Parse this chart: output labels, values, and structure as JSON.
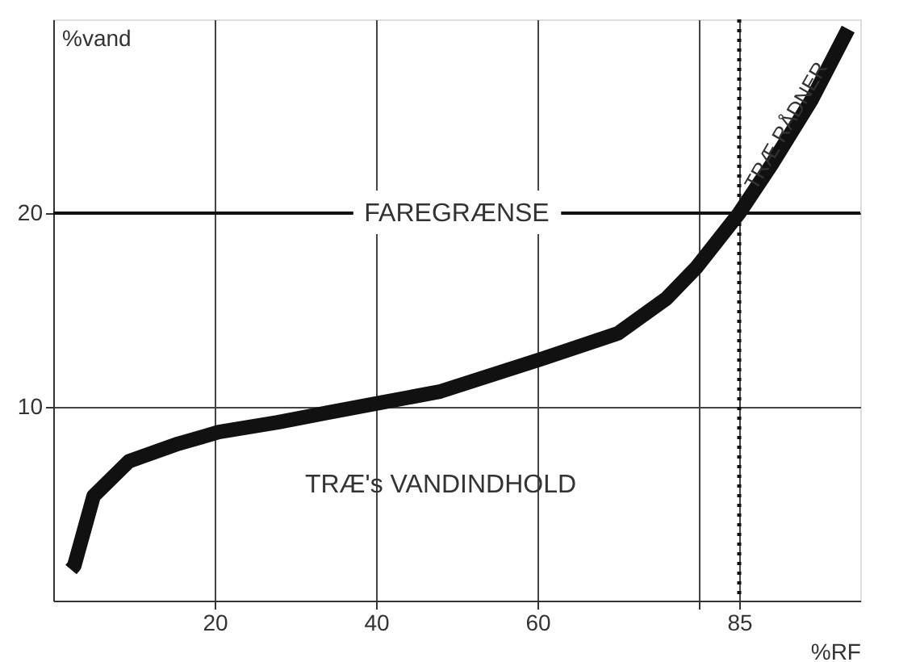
{
  "chart_data": {
    "type": "line",
    "xlabel": "%RF",
    "ylabel": "%vand",
    "series": [
      {
        "color": "#111111",
        "x": [
          2.2,
          2.6,
          5,
          9.4,
          15.5,
          20.5,
          27.8,
          34,
          40.4,
          48,
          60.7,
          70,
          76,
          79.7,
          85,
          89,
          93.9,
          98.5
        ],
        "values": [
          1.6,
          1.8,
          5.4,
          7.2,
          8.1,
          8.7,
          9.2,
          9.7,
          10.2,
          10.8,
          12.5,
          13.8,
          15.6,
          17.2,
          20,
          22.5,
          25.8,
          29.5
        ]
      }
    ],
    "xlim": [
      0,
      100
    ],
    "ylim": [
      0,
      30
    ],
    "xticks": [
      20,
      40,
      60,
      {
        "value": 80,
        "label": null
      },
      85
    ],
    "yticks": [
      10,
      20
    ],
    "grid": true,
    "ref_lines": [
      {
        "axis": "y",
        "value": 20,
        "label": "FAREGRÆNSE",
        "color": "#111111",
        "line_style": "solid"
      },
      {
        "axis": "x",
        "value": 85,
        "label": null,
        "color": "#111111",
        "line_style": "dotted"
      }
    ],
    "annotations": [
      "TRÆ's VANDINDHOLD",
      {
        "text": "TRÆ RÅDNER",
        "x": 86,
        "y": 21
      }
    ]
  }
}
